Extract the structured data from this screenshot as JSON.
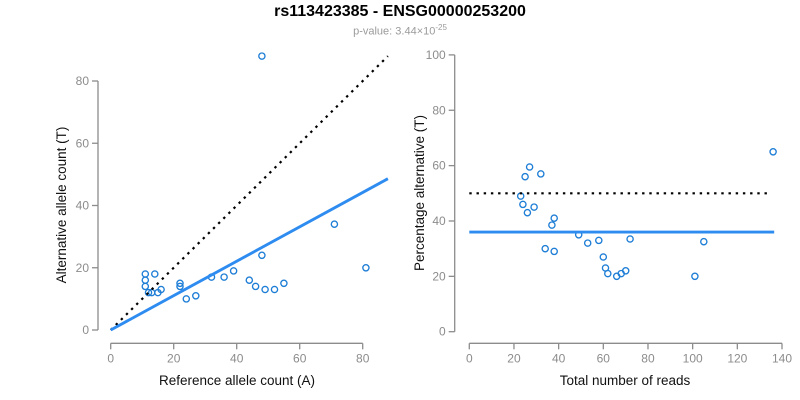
{
  "header": {
    "title": "rs113423385 - ENSG00000253200",
    "subtitle_prefix": "p-value: ",
    "pvalue_mantissa": "3.44×10",
    "pvalue_exponent": "-25"
  },
  "colors": {
    "point": "#1e7ed6",
    "fit_line": "#2e8cf0",
    "reference_line": "#000000",
    "axis": "#8c8c8c",
    "tick_label": "#8c8c8c",
    "axis_title": "#111111",
    "subtitle": "#9b9b9b"
  },
  "chart_data": [
    {
      "id": "allele-count-scatter",
      "type": "scatter",
      "xlabel": "Reference allele count (A)",
      "ylabel": "Alternative allele count (T)",
      "xticks": [
        0,
        20,
        40,
        60,
        80
      ],
      "yticks": [
        0,
        20,
        40,
        60,
        80
      ],
      "xlim": [
        0,
        88
      ],
      "ylim": [
        0,
        89
      ],
      "points": [
        [
          11,
          18
        ],
        [
          14,
          18
        ],
        [
          11,
          16
        ],
        [
          11,
          14
        ],
        [
          16,
          13
        ],
        [
          12,
          12
        ],
        [
          13,
          12
        ],
        [
          15,
          12
        ],
        [
          22,
          15
        ],
        [
          22,
          14
        ],
        [
          24,
          10
        ],
        [
          27,
          11
        ],
        [
          32,
          17
        ],
        [
          36,
          17
        ],
        [
          39,
          19
        ],
        [
          44,
          16
        ],
        [
          46,
          14
        ],
        [
          49,
          13
        ],
        [
          52,
          13
        ],
        [
          55,
          15
        ],
        [
          48,
          24
        ],
        [
          71,
          34
        ],
        [
          81,
          20
        ],
        [
          48,
          88
        ]
      ],
      "lines": [
        {
          "name": "identity-line",
          "style": "dotted",
          "color_key": "reference_line",
          "x1": 0,
          "y1": 0,
          "x2": 88,
          "y2": 88
        },
        {
          "name": "fit-line",
          "style": "solid",
          "color_key": "fit_line",
          "x1": 0,
          "y1": 0,
          "x2": 88,
          "y2": 48.6
        }
      ]
    },
    {
      "id": "percentage-reads-scatter",
      "type": "scatter",
      "xlabel": "Total number of reads",
      "ylabel": "Percentage alternative (T)",
      "xticks": [
        0,
        20,
        40,
        60,
        80,
        100,
        120,
        140
      ],
      "yticks": [
        0,
        20,
        40,
        60,
        80,
        100
      ],
      "xlim": [
        0,
        140
      ],
      "ylim": [
        0,
        100
      ],
      "points": [
        [
          27,
          59.5
        ],
        [
          25,
          56
        ],
        [
          32,
          57
        ],
        [
          23,
          49
        ],
        [
          24,
          46
        ],
        [
          29,
          45
        ],
        [
          26,
          43
        ],
        [
          38,
          41
        ],
        [
          37,
          38.5
        ],
        [
          49,
          35
        ],
        [
          53,
          32
        ],
        [
          58,
          33
        ],
        [
          34,
          30
        ],
        [
          38,
          29
        ],
        [
          60,
          27
        ],
        [
          61,
          23
        ],
        [
          62,
          21
        ],
        [
          66,
          20
        ],
        [
          68,
          21
        ],
        [
          70,
          22
        ],
        [
          72,
          33.5
        ],
        [
          101,
          20
        ],
        [
          105,
          32.5
        ],
        [
          136,
          65
        ]
      ],
      "lines": [
        {
          "name": "fifty-percent-line",
          "style": "dotted",
          "color_key": "reference_line",
          "x1": 0,
          "y1": 50,
          "x2": 134,
          "y2": 50
        },
        {
          "name": "mean-percentage-line",
          "style": "solid",
          "color_key": "fit_line",
          "x1": 0,
          "y1": 36,
          "x2": 136.5,
          "y2": 36
        }
      ]
    }
  ]
}
